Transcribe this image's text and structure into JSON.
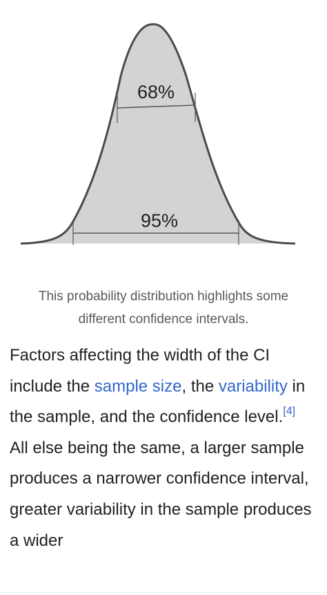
{
  "figure": {
    "inner_interval_label": "68%",
    "outer_interval_label": "95%",
    "caption": "This probability distribution highlights some different confidence intervals."
  },
  "article": {
    "t1": "Factors affecting the width of the CI include the ",
    "link_sample_size": "sample size",
    "t2": ", the ",
    "link_variability": "variability",
    "t3": " in the sample, and the confidence level.",
    "ref": "[4]",
    "t4": " All else being the same, a larger sample produces a narrower confidence interval, greater variability in the sample produces a wider"
  },
  "colors": {
    "curve_fill": "#d3d3d3",
    "curve_stroke": "#4a4a4a",
    "link": "#3366cc",
    "caption_text": "#54595d",
    "body_text": "#202122"
  }
}
